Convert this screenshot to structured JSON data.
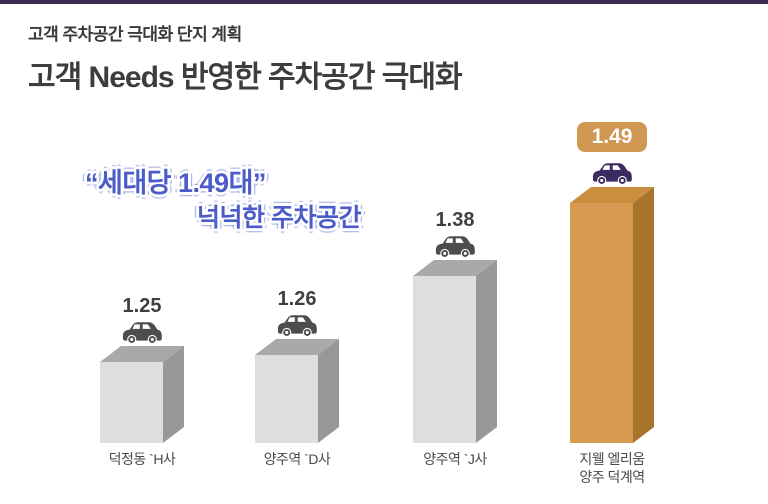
{
  "header": {
    "eyebrow": "고객 주차공간 극대화 단지 계획",
    "title": "고객 Needs 반영한 주차공간 극대화"
  },
  "annotation": {
    "line1": "“세대당 1.49대”",
    "line2": "넉넉한 주차공간"
  },
  "colors": {
    "top_strip": "#3b2c55",
    "annotation_blue": "#4b5bc8",
    "text_dark": "#3f3f3f",
    "label_gray": "#4a4a4a",
    "bar_front": "#dedede",
    "bar_top": "#a9a9a9",
    "bar_side": "#989898",
    "highlight_front": "#d69b51",
    "highlight_top": "#c98f3c",
    "highlight_side": "#a9742b",
    "badge_bg": "#d09752",
    "badge_text": "#ffffff",
    "car_gray": "#4d4d4d",
    "car_purple": "#3b2b5e"
  },
  "chart_data": {
    "type": "bar",
    "title": "",
    "categories": [
      "덕정동 `H사",
      "양주역 `D사",
      "양주역 `J사",
      "지웰 엘리움\n양주 덕계역"
    ],
    "values": [
      1.25,
      1.26,
      1.38,
      1.49
    ],
    "value_labels": [
      "1.25",
      "1.26",
      "1.38",
      "1.49"
    ],
    "highlight_index": 3,
    "ylim": [
      1.1,
      1.55
    ],
    "grid": false,
    "legend": "none"
  }
}
